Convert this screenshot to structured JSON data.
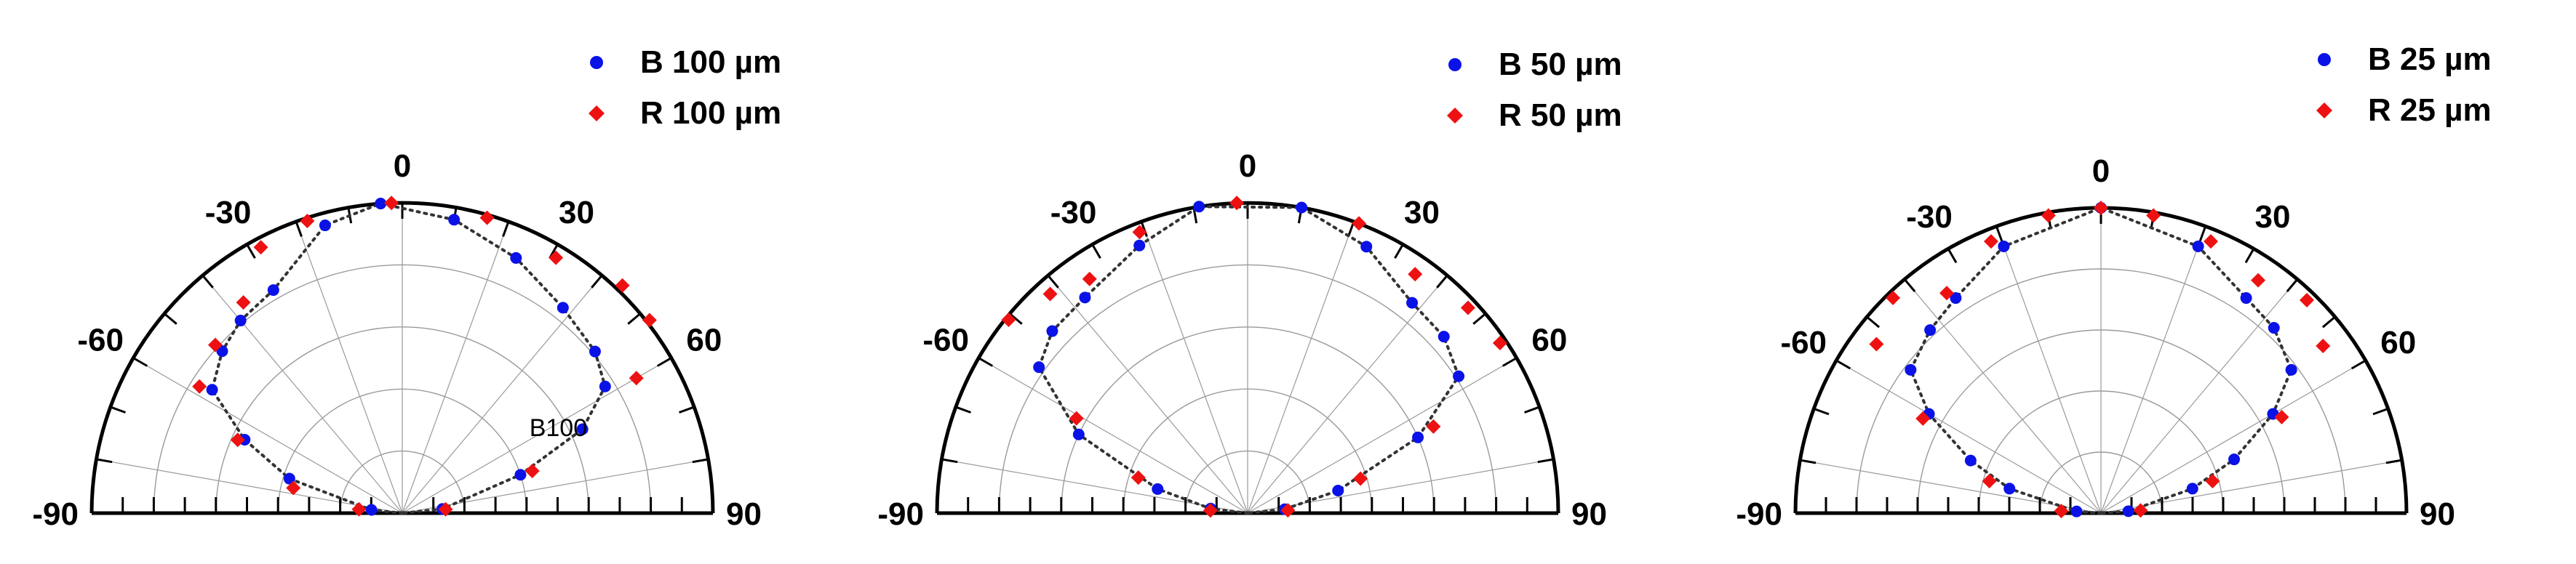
{
  "colors": {
    "blue": "#0a12e8",
    "red": "#ee1111",
    "frame": "#000000",
    "grid": "#9a9a9a",
    "fit": "#333333"
  },
  "chart_data": [
    {
      "type": "scatter",
      "coordinate_system": "polar half-circle",
      "title": "",
      "angle_ticks": [
        "-90",
        "-60",
        "-30",
        "0",
        "30",
        "60",
        "90"
      ],
      "angle_range": [
        -90,
        90
      ],
      "radial_range": [
        0,
        1
      ],
      "grid": true,
      "legend_position": "top-right",
      "annotation": "B100",
      "series": [
        {
          "name": "B 100 µm",
          "color": "#0a12e8",
          "marker": "circle",
          "points": [
            {
              "theta": -84,
              "r": 0.1
            },
            {
              "theta": -73,
              "r": 0.38
            },
            {
              "theta": -65,
              "r": 0.56
            },
            {
              "theta": -57,
              "r": 0.73
            },
            {
              "theta": -48,
              "r": 0.78
            },
            {
              "theta": -40,
              "r": 0.81
            },
            {
              "theta": -30,
              "r": 0.83
            },
            {
              "theta": -15,
              "r": 0.96
            },
            {
              "theta": -4,
              "r": 1.0
            },
            {
              "theta": 10,
              "r": 0.96
            },
            {
              "theta": 24,
              "r": 0.9
            },
            {
              "theta": 38,
              "r": 0.84
            },
            {
              "theta": 50,
              "r": 0.81
            },
            {
              "theta": 58,
              "r": 0.77
            },
            {
              "theta": 65,
              "r": 0.64
            },
            {
              "theta": 72,
              "r": 0.4
            },
            {
              "theta": 84,
              "r": 0.13
            }
          ]
        },
        {
          "name": "R 100 µm",
          "color": "#ee1111",
          "marker": "diamond",
          "points": [
            {
              "theta": -85,
              "r": 0.14
            },
            {
              "theta": -77,
              "r": 0.36
            },
            {
              "theta": -66,
              "r": 0.58
            },
            {
              "theta": -58,
              "r": 0.77
            },
            {
              "theta": -48,
              "r": 0.81
            },
            {
              "theta": -37,
              "r": 0.85
            },
            {
              "theta": -28,
              "r": 0.97
            },
            {
              "theta": -18,
              "r": 0.99
            },
            {
              "theta": -2,
              "r": 1.0
            },
            {
              "theta": 16,
              "r": 0.99
            },
            {
              "theta": 31,
              "r": 0.96
            },
            {
              "theta": 44,
              "r": 1.02
            },
            {
              "theta": 52,
              "r": 1.01
            },
            {
              "theta": 60,
              "r": 0.87
            },
            {
              "theta": 72,
              "r": 0.44
            },
            {
              "theta": 85,
              "r": 0.14
            }
          ]
        }
      ]
    },
    {
      "type": "scatter",
      "coordinate_system": "polar half-circle",
      "title": "",
      "angle_ticks": [
        "-90",
        "-60",
        "-30",
        "0",
        "30",
        "60",
        "90"
      ],
      "angle_range": [
        -90,
        90
      ],
      "radial_range": [
        0,
        1
      ],
      "grid": true,
      "legend_position": "top-right",
      "series": [
        {
          "name": "B 50 µm",
          "color": "#0a12e8",
          "marker": "circle",
          "points": [
            {
              "theta": -83,
              "r": 0.12
            },
            {
              "theta": -75,
              "r": 0.3
            },
            {
              "theta": -65,
              "r": 0.6
            },
            {
              "theta": -55,
              "r": 0.82
            },
            {
              "theta": -47,
              "r": 0.86
            },
            {
              "theta": -37,
              "r": 0.87
            },
            {
              "theta": -22,
              "r": 0.93
            },
            {
              "theta": -9,
              "r": 1.0
            },
            {
              "theta": 10,
              "r": 1.0
            },
            {
              "theta": 24,
              "r": 0.94
            },
            {
              "theta": 38,
              "r": 0.86
            },
            {
              "theta": 48,
              "r": 0.85
            },
            {
              "theta": 57,
              "r": 0.81
            },
            {
              "theta": 66,
              "r": 0.6
            },
            {
              "theta": 76,
              "r": 0.3
            },
            {
              "theta": 84,
              "r": 0.12
            }
          ]
        },
        {
          "name": "R 50 µm",
          "color": "#ee1111",
          "marker": "diamond",
          "points": [
            {
              "theta": -86,
              "r": 0.12
            },
            {
              "theta": -72,
              "r": 0.37
            },
            {
              "theta": -61,
              "r": 0.63
            },
            {
              "theta": -51,
              "r": 0.99
            },
            {
              "theta": -42,
              "r": 0.95
            },
            {
              "theta": -34,
              "r": 0.91
            },
            {
              "theta": -21,
              "r": 0.97
            },
            {
              "theta": -2,
              "r": 1.0
            },
            {
              "theta": 21,
              "r": 1.0
            },
            {
              "theta": 35,
              "r": 0.94
            },
            {
              "theta": 47,
              "r": 0.97
            },
            {
              "theta": 56,
              "r": 0.98
            },
            {
              "theta": 65,
              "r": 0.66
            },
            {
              "theta": 73,
              "r": 0.38
            },
            {
              "theta": 86,
              "r": 0.13
            }
          ]
        }
      ]
    },
    {
      "type": "scatter",
      "coordinate_system": "polar half-circle",
      "title": "",
      "angle_ticks": [
        "-90",
        "-60",
        "-30",
        "0",
        "30",
        "60",
        "90"
      ],
      "angle_range": [
        -90,
        90
      ],
      "radial_range": [
        0,
        1
      ],
      "grid": true,
      "legend_position": "top-right",
      "series": [
        {
          "name": "B 25 µm",
          "color": "#0a12e8",
          "marker": "circle",
          "points": [
            {
              "theta": -86,
              "r": 0.08
            },
            {
              "theta": -75,
              "r": 0.31
            },
            {
              "theta": -68,
              "r": 0.46
            },
            {
              "theta": -60,
              "r": 0.65
            },
            {
              "theta": -53,
              "r": 0.78
            },
            {
              "theta": -43,
              "r": 0.82
            },
            {
              "theta": -34,
              "r": 0.85
            },
            {
              "theta": -20,
              "r": 0.93
            },
            {
              "theta": 0,
              "r": 1.0
            },
            {
              "theta": 20,
              "r": 0.93
            },
            {
              "theta": 34,
              "r": 0.85
            },
            {
              "theta": 43,
              "r": 0.83
            },
            {
              "theta": 53,
              "r": 0.78
            },
            {
              "theta": 60,
              "r": 0.65
            },
            {
              "theta": 68,
              "r": 0.47
            },
            {
              "theta": 75,
              "r": 0.31
            },
            {
              "theta": 86,
              "r": 0.09
            }
          ]
        },
        {
          "name": "R 25 µm",
          "color": "#ee1111",
          "marker": "diamond",
          "points": [
            {
              "theta": -87,
              "r": 0.13
            },
            {
              "theta": -74,
              "r": 0.38
            },
            {
              "theta": -62,
              "r": 0.66
            },
            {
              "theta": -53,
              "r": 0.92
            },
            {
              "theta": -44,
              "r": 0.98
            },
            {
              "theta": -35,
              "r": 0.88
            },
            {
              "theta": -22,
              "r": 0.96
            },
            {
              "theta": -10,
              "r": 0.99
            },
            {
              "theta": 0,
              "r": 1.0
            },
            {
              "theta": 10,
              "r": 0.99
            },
            {
              "theta": 22,
              "r": 0.96
            },
            {
              "theta": 34,
              "r": 0.92
            },
            {
              "theta": 44,
              "r": 0.97
            },
            {
              "theta": 53,
              "r": 0.91
            },
            {
              "theta": 62,
              "r": 0.67
            },
            {
              "theta": 74,
              "r": 0.38
            },
            {
              "theta": 86,
              "r": 0.13
            }
          ]
        }
      ]
    }
  ]
}
